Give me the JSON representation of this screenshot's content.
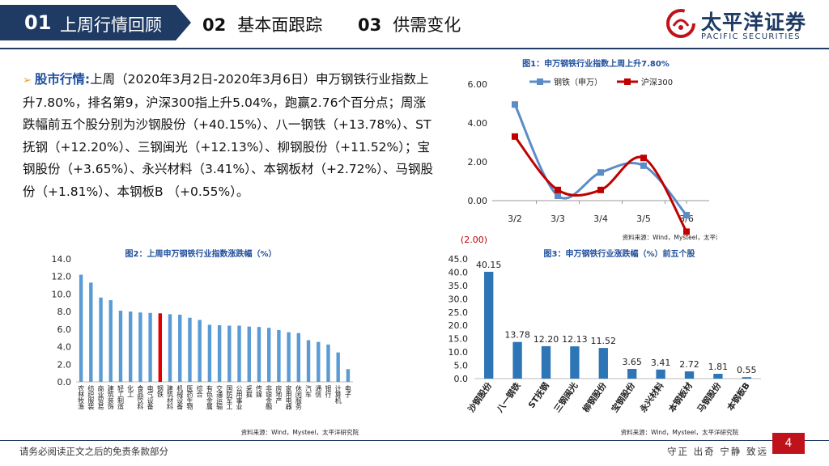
{
  "header": {
    "tabs": [
      {
        "num": "01",
        "label": "上周行情回顾"
      },
      {
        "num": "02",
        "label": "基本面跟踪"
      },
      {
        "num": "03",
        "label": "供需变化"
      }
    ],
    "logo_cn": "太平洋证券",
    "logo_en": "PACIFIC SECURITIES",
    "brand_color": "#1f3a63"
  },
  "market": {
    "head": "股市行情:",
    "body": "上周（2020年3月2日-2020年3月6日）申万钢铁行业指数上升7.80%，排名第9，沪深300指上升5.04%，跑赢2.76个百分点；周涨跌幅前五个股分别为沙钢股份（+40.15%）、八一钢铁（+13.78%）、ST抚钢（+12.20%）、三钢闽光（+12.13%）、柳钢股份（+11.52%）；宝钢股份（+3.65%）、永兴材料（3.41%）、本钢板材（+2.72%）、马钢股份（+1.81%）、本钢板B （+0.55%）。"
  },
  "chart_data": [
    {
      "type": "line",
      "title": "图1：申万钢铁行业指数上周上升7.80%",
      "categories": [
        "3/2",
        "3/3",
        "3/4",
        "3/5",
        "3/6"
      ],
      "ylim": [
        -2,
        6
      ],
      "yticks": [
        "(2.00)",
        "0.00",
        "2.00",
        "4.00",
        "6.00"
      ],
      "series": [
        {
          "name": "钢铁（申万）",
          "values": [
            4.95,
            0.25,
            1.45,
            1.8,
            -0.75
          ],
          "color": "#5b8cc8"
        },
        {
          "name": "沪深300",
          "values": [
            3.3,
            0.55,
            0.55,
            2.2,
            -1.6
          ],
          "color": "#c00000"
        }
      ],
      "source": "资料来源：Wind，Mysteel，太平洋研究院"
    },
    {
      "type": "bar",
      "title": "图2：上周申万钢铁行业指数涨跌幅（%）",
      "categories": [
        "农林牧渔",
        "纺织服装",
        "商业贸易",
        "建筑装饰",
        "轻工制造",
        "化工",
        "食品饮料",
        "电气设备",
        "钢铁",
        "建筑材料",
        "机械设备",
        "医药生物",
        "综合",
        "有色金属",
        "交通运输",
        "国防军工",
        "公用事业",
        "采掘",
        "传媒",
        "非银金融",
        "房地产",
        "家用电器",
        "休闲服务",
        "汽车",
        "通信",
        "银行",
        "计算机",
        "电子"
      ],
      "values": [
        12.2,
        11.3,
        9.6,
        9.3,
        8.1,
        8.0,
        7.9,
        7.85,
        7.8,
        7.7,
        7.65,
        7.3,
        7.05,
        6.5,
        6.45,
        6.4,
        6.4,
        6.3,
        6.25,
        6.15,
        5.9,
        5.65,
        5.55,
        4.75,
        4.55,
        4.25,
        3.35,
        1.45
      ],
      "highlight": "钢铁",
      "ylim": [
        0,
        14
      ],
      "yticks": [
        "0.0",
        "2.0",
        "4.0",
        "6.0",
        "8.0",
        "10.0",
        "12.0",
        "14.0"
      ],
      "color": "#5b9bd5",
      "highlight_color": "#e00000",
      "source": "资料来源：Wind，Mysteel，太平洋研究院"
    },
    {
      "type": "bar",
      "title": "图3：申万钢铁行业涨跌幅（%）前五个股",
      "categories": [
        "沙钢股份",
        "八一钢铁",
        "ST抚钢",
        "三钢闽光",
        "柳钢股份",
        "宝钢股份",
        "永兴材料",
        "本钢板材",
        "马钢股份",
        "本钢板B"
      ],
      "values": [
        40.15,
        13.78,
        12.2,
        12.13,
        11.52,
        3.65,
        3.41,
        2.72,
        1.81,
        0.55
      ],
      "value_labels": [
        "40.15",
        "13.78",
        "12.20",
        "12.13",
        "11.52",
        "3.65",
        "3.41",
        "2.72",
        "1.81",
        "0.55"
      ],
      "ylim": [
        0,
        45
      ],
      "yticks": [
        "0.0",
        "5.0",
        "10.0",
        "15.0",
        "20.0",
        "25.0",
        "30.0",
        "35.0",
        "40.0",
        "45.0"
      ],
      "color": "#2e75b6",
      "source": "资料来源：Wind，Mysteel，太平洋研究院"
    }
  ],
  "footer": {
    "disclaimer": "请务必阅读正文之后的免责条款部分",
    "slogan": "守正 出奇 宁静 致远",
    "page": "4"
  }
}
